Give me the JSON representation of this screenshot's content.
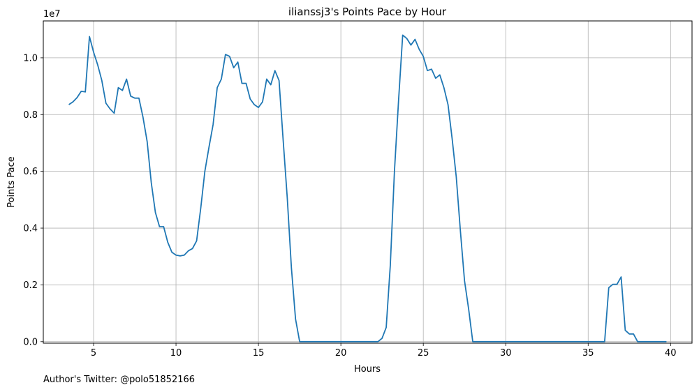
{
  "chart_data": {
    "type": "line",
    "title": "ilianssj3's Points Pace by Hour",
    "xlabel": "Hours",
    "ylabel": "Points Pace",
    "y_offset_label": "1e7",
    "xlim": [
      1.95,
      41.3
    ],
    "ylim": [
      -0.054,
      11.3
    ],
    "x_ticks": [
      5,
      10,
      15,
      20,
      25,
      30,
      35,
      40
    ],
    "x_tick_labels": [
      "5",
      "10",
      "15",
      "20",
      "25",
      "30",
      "35",
      "40"
    ],
    "y_ticks": [
      0.0,
      0.2,
      0.4,
      0.6,
      0.8,
      1.0
    ],
    "y_tick_labels": [
      "0.0",
      "0.2",
      "0.4",
      "0.6",
      "0.8",
      "1.0"
    ],
    "y_scale_note": "values in units of 1e7 (tick labels scaled by 10)",
    "grid": true,
    "line_color": "#1f77b4",
    "series": [
      {
        "x": [
          3.5,
          3.75,
          4.0,
          4.25,
          4.5,
          4.75,
          5.0,
          5.25,
          5.5,
          5.75,
          6.0,
          6.25,
          6.5,
          6.75,
          7.0,
          7.25,
          7.5,
          7.75,
          8.0,
          8.25,
          8.5,
          8.75,
          9.0,
          9.25,
          9.5,
          9.75,
          10.0,
          10.25,
          10.5,
          10.75,
          11.0,
          11.25,
          11.5,
          11.75,
          12.0,
          12.25,
          12.5,
          12.75,
          13.0,
          13.25,
          13.5,
          13.75,
          14.0,
          14.25,
          14.5,
          14.75,
          15.0,
          15.25,
          15.5,
          15.75,
          16.0,
          16.25,
          16.5,
          16.75,
          17.0,
          17.25,
          17.5,
          17.75,
          18.0,
          18.5,
          19.0,
          19.5,
          20.0,
          20.5,
          21.0,
          21.5,
          22.0,
          22.25,
          22.5,
          22.75,
          23.0,
          23.25,
          23.5,
          23.75,
          24.0,
          24.25,
          24.5,
          24.75,
          25.0,
          25.25,
          25.5,
          25.75,
          26.0,
          26.25,
          26.5,
          26.75,
          27.0,
          27.25,
          27.5,
          27.75,
          28.0,
          28.5,
          29.0,
          30.0,
          31.0,
          32.0,
          33.0,
          34.0,
          35.0,
          36.0,
          36.25,
          36.5,
          36.75,
          37.0,
          37.25,
          37.5,
          37.75,
          38.0,
          38.5,
          39.0,
          39.5,
          39.75
        ],
        "y": [
          8.35,
          8.45,
          8.6,
          8.82,
          8.8,
          10.75,
          10.2,
          9.75,
          9.2,
          8.4,
          8.2,
          8.05,
          8.95,
          8.85,
          9.25,
          8.65,
          8.58,
          8.58,
          7.9,
          7.05,
          5.6,
          4.55,
          4.05,
          4.05,
          3.5,
          3.15,
          3.05,
          3.02,
          3.05,
          3.2,
          3.28,
          3.55,
          4.7,
          6.0,
          6.85,
          7.65,
          8.95,
          9.25,
          10.12,
          10.05,
          9.65,
          9.85,
          9.1,
          9.1,
          8.55,
          8.35,
          8.25,
          8.45,
          9.25,
          9.05,
          9.55,
          9.2,
          7.1,
          5.05,
          2.6,
          0.8,
          0.0,
          0.0,
          0.0,
          0.0,
          0.0,
          0.0,
          0.0,
          0.0,
          0.0,
          0.0,
          0.0,
          0.0,
          0.12,
          0.5,
          2.7,
          6.0,
          8.5,
          10.8,
          10.68,
          10.45,
          10.65,
          10.3,
          10.05,
          9.55,
          9.6,
          9.28,
          9.4,
          8.95,
          8.35,
          7.15,
          5.8,
          3.9,
          2.15,
          1.15,
          0.0,
          0.0,
          0.0,
          0.0,
          0.0,
          0.0,
          0.0,
          0.0,
          0.0,
          0.0,
          1.9,
          2.02,
          2.02,
          2.28,
          0.4,
          0.27,
          0.27,
          0.0,
          0.0,
          0.0,
          0.0,
          0.0
        ]
      }
    ]
  },
  "footer": {
    "text": "Author's Twitter: @polo51852166"
  }
}
